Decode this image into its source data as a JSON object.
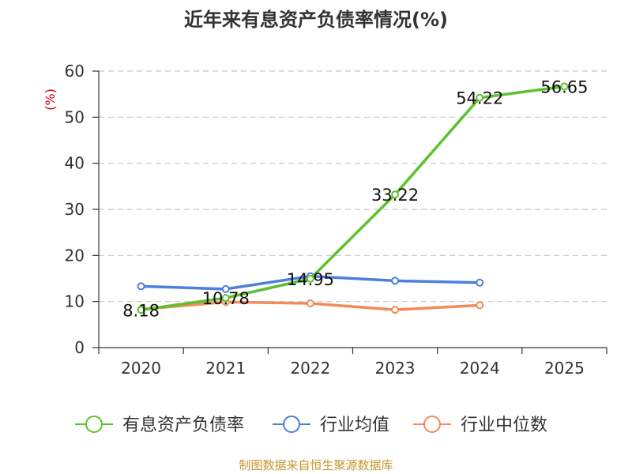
{
  "chart_data": {
    "type": "line",
    "title": "近年来有息资产负债率情况(%)",
    "ylabel": "(%)",
    "xlabel": "",
    "categories": [
      "2020",
      "2021",
      "2022",
      "2023",
      "2024",
      "2025"
    ],
    "ylim": [
      0,
      60
    ],
    "yticks": [
      0,
      10,
      20,
      30,
      40,
      50,
      60
    ],
    "grid": true,
    "legend_position": "bottom",
    "series": [
      {
        "name": "有息资产负债率",
        "color": "#5dc12e",
        "values": [
          8.18,
          10.78,
          14.95,
          33.22,
          54.22,
          56.65
        ],
        "labels": [
          "8.18",
          "10.78",
          "14.95",
          "33.22",
          "54.22",
          "56.65"
        ]
      },
      {
        "name": "行业均值",
        "color": "#4d7fdc",
        "values": [
          13.3,
          12.7,
          15.5,
          14.5,
          14.1,
          null
        ]
      },
      {
        "name": "行业中位数",
        "color": "#f28a5a",
        "values": [
          8.3,
          9.9,
          9.6,
          8.2,
          9.2,
          null
        ]
      }
    ]
  },
  "footer": "制图数据来自恒生聚源数据库"
}
